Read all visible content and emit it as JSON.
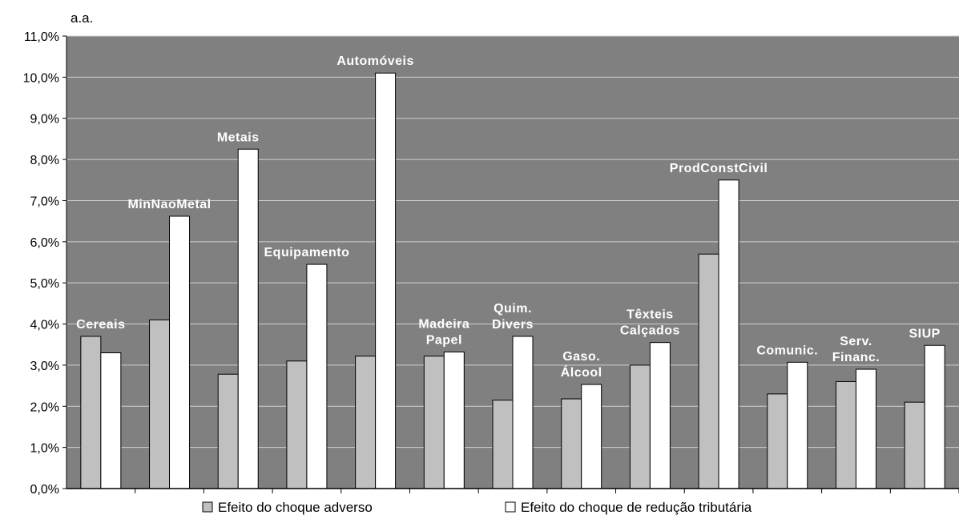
{
  "chart_data": {
    "type": "bar",
    "unit_label": "a.a.",
    "categories": [
      [
        "Cereais"
      ],
      [
        "MinNaoMetal"
      ],
      [
        "Metais"
      ],
      [
        "Equipamento"
      ],
      [
        "Automóveis"
      ],
      [
        "Madeira",
        "Papel"
      ],
      [
        "Quim.",
        "Divers"
      ],
      [
        "Gaso.",
        "Álcool"
      ],
      [
        "Têxteis",
        "Calçados"
      ],
      [
        "ProdConstCivil"
      ],
      [
        "Comunic."
      ],
      [
        "Serv.",
        "Financ."
      ],
      [
        "SIUP"
      ]
    ],
    "series": [
      {
        "name": "Efeito do choque adverso",
        "color": "#c0c0c0",
        "values": [
          3.7,
          4.1,
          2.78,
          3.1,
          3.22,
          3.22,
          2.15,
          2.18,
          3.0,
          5.7,
          2.3,
          2.6,
          2.1
        ]
      },
      {
        "name": "Efeito do choque de redução tributária",
        "color": "#ffffff",
        "values": [
          3.3,
          6.62,
          8.25,
          5.45,
          10.1,
          3.32,
          3.7,
          2.53,
          3.55,
          7.5,
          3.07,
          2.9,
          3.48
        ]
      }
    ],
    "ylim": [
      0,
      11
    ],
    "y_ticks": [
      "0,0%",
      "1,0%",
      "2,0%",
      "3,0%",
      "4,0%",
      "5,0%",
      "6,0%",
      "7,0%",
      "8,0%",
      "9,0%",
      "10,0%",
      "11,0%"
    ],
    "grid": true,
    "plot_background": "#808080",
    "legend_position": "bottom"
  }
}
